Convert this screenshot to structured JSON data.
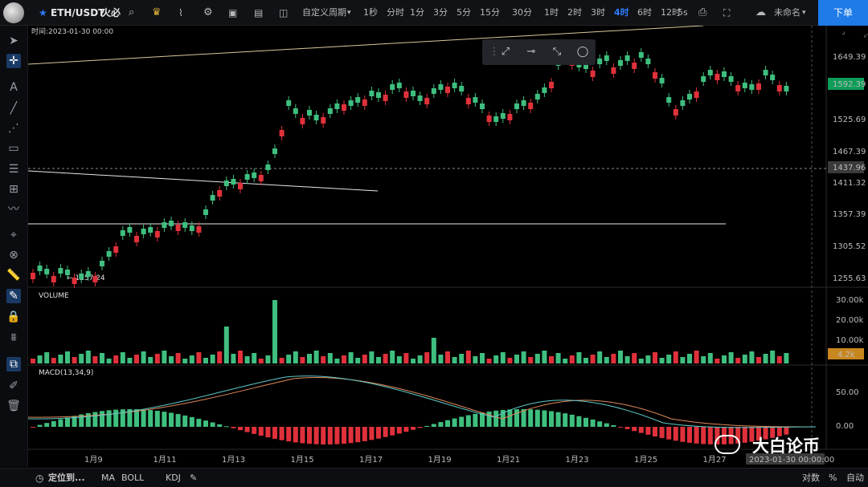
{
  "topbar": {
    "symbol": "ETH/USDT",
    "exchange": "火必",
    "custom_period": "自定义周期",
    "intervals": [
      "1秒",
      "分时",
      "1分",
      "3分",
      "5分",
      "15分",
      "30分",
      "1时",
      "2时",
      "3时",
      "4时",
      "6时",
      "12时"
    ],
    "active_interval": "4时",
    "refresh": "5s",
    "cloud_label": "未命名",
    "order_button": "下单"
  },
  "chart_info": {
    "time_label": "时间:2023-01-30 00:00",
    "low_marker": "← 1257.24",
    "volume_label": "VOLUME",
    "macd_label": "MACD(13,34,9)"
  },
  "price_axis": {
    "ticks": [
      "1649.39",
      "1592.39",
      "1525.69",
      "1467.39",
      "1437.96",
      "1411.32",
      "1357.39",
      "1305.52",
      "1255.63"
    ],
    "current_price": "1592.39",
    "crosshair_price": "1437.96"
  },
  "volume_axis": {
    "ticks": [
      "30.00k",
      "20.00k",
      "10.00k"
    ],
    "current_volume": "4.2k"
  },
  "macd_axis": {
    "ticks": [
      "50.00",
      "0.00"
    ]
  },
  "time_axis": {
    "ticks": [
      "1月9",
      "1月11",
      "1月13",
      "1月15",
      "1月17",
      "1月19",
      "1月21",
      "1月23",
      "1月25",
      "1月27"
    ],
    "crosshair_time": "2023-01-30 00:00:00"
  },
  "bottombar": {
    "locate": "定位到...",
    "indicators": [
      "MA",
      "BOLL",
      "KDJ"
    ],
    "log_label": "对数",
    "percent_label": "%",
    "auto_label": "自动"
  },
  "watermark": {
    "text": "大白论币"
  },
  "colors": {
    "up": "#3fbf7f",
    "down": "#e0313b",
    "accent": "#2f7bff",
    "price_tag": "#0f9d58",
    "volume_tag": "#c8861f"
  }
}
